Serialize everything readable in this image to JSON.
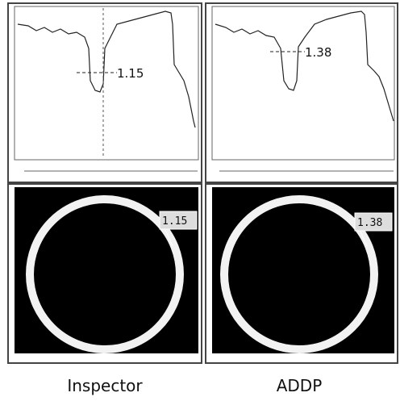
{
  "panels": [
    {
      "caption": "Inspector",
      "profile_annotation": "1.15",
      "image_annotation": "1.15"
    },
    {
      "caption": "ADDP",
      "profile_annotation": "1.38",
      "image_annotation": "1.38"
    }
  ]
}
